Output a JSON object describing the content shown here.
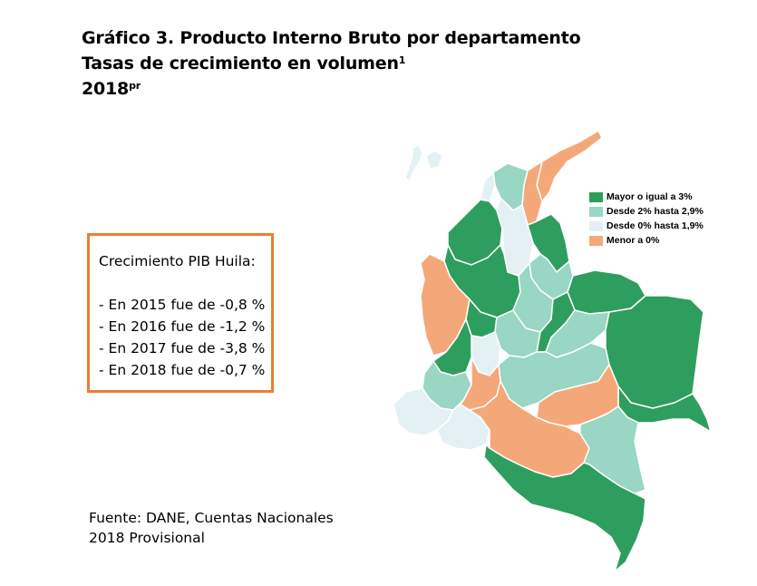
{
  "title": {
    "line1": "Gráfico 3. Producto Interno Bruto por departamento",
    "line2": "Tasas de crecimiento en volumen",
    "line2_sup": "1",
    "line3": "2018",
    "line3_sup": "pr"
  },
  "info_box": {
    "heading": "Crecimiento PIB Huila:",
    "items": [
      "- En 2015 fue de -0,8 %",
      "- En 2016 fue de -1,2 %",
      "- En 2017 fue de -3,8 %",
      "- En 2018 fue de -0,7 %"
    ],
    "border_color": "#ed7d31"
  },
  "legend": [
    {
      "label": "Mayor o igual a 3%",
      "color": "#2e9e5e"
    },
    {
      "label": "Desde 2% hasta 2,9%",
      "color": "#99d6c3"
    },
    {
      "label": "Desde 0% hasta 1,9%",
      "color": "#e4f1f4"
    },
    {
      "label": "Menor a 0%",
      "color": "#f4a87a"
    }
  ],
  "source": {
    "line1": "Fuente: DANE, Cuentas Nacionales",
    "line2": "2018 Provisional"
  },
  "map_colors": {
    "high": "#2e9e5e",
    "mid": "#99d6c3",
    "low": "#e4f1f4",
    "negative": "#f4a87a",
    "border": "#ffffff"
  }
}
